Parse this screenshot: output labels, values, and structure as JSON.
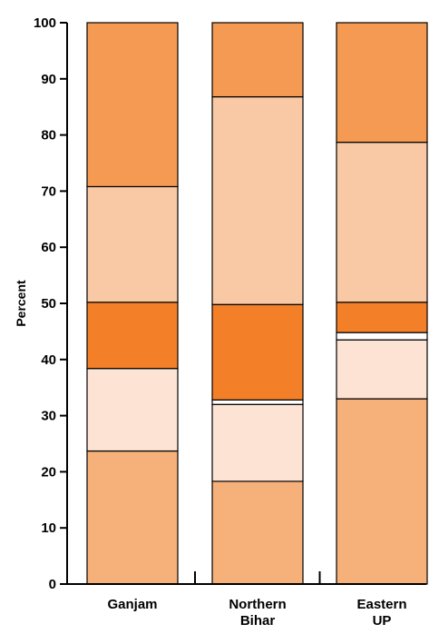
{
  "chart_data": {
    "type": "bar",
    "stacked": true,
    "categories": [
      "Ganjam",
      "Northern\nBihar",
      "Eastern\nUP"
    ],
    "ylabel": "Percent",
    "ylim": [
      0,
      100
    ],
    "yticks": [
      0,
      10,
      20,
      30,
      40,
      50,
      60,
      70,
      80,
      90,
      100
    ],
    "series": [
      {
        "color": "#f6b07a",
        "values": [
          23.7,
          18.3,
          33.0
        ]
      },
      {
        "color": "#fde3d3",
        "values": [
          14.7,
          13.7,
          10.5
        ]
      },
      {
        "color": "#ffffff",
        "values": [
          0,
          0.8,
          1.3
        ]
      },
      {
        "color": "#f47f29",
        "values": [
          11.8,
          17.0,
          5.4
        ]
      },
      {
        "color": "#f9c9a5",
        "values": [
          20.6,
          37.0,
          28.5
        ]
      },
      {
        "color": "#f59a52",
        "values": [
          29.2,
          13.2,
          21.3
        ]
      }
    ]
  }
}
